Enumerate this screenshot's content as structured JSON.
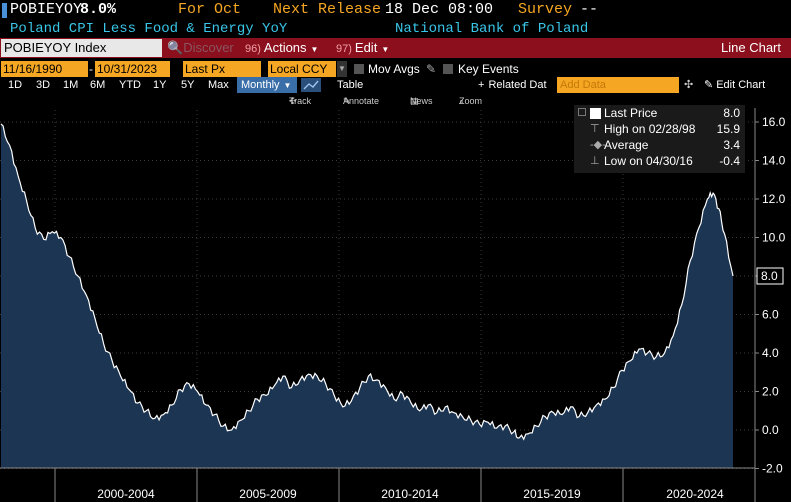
{
  "header": {
    "ticker": "POBIEYOY",
    "value": "8.0%",
    "period": "For Oct",
    "next_release_label": "Next Release",
    "next_release_value": "18 Dec 08:00",
    "survey_label": "Survey",
    "survey_value": "--",
    "description": "Poland CPI Less Food & Energy YoY",
    "source": "National Bank of Poland"
  },
  "toolbar": {
    "security": "POBIEYOY Index",
    "discover": "Discover",
    "actions_num": "96)",
    "actions_label": "Actions",
    "edit_num": "97)",
    "edit_label": "Edit",
    "chart_type": "Line Chart"
  },
  "inputs": {
    "start_date": "11/16/1990",
    "end_date": "10/31/2023",
    "field": "Last Px",
    "currency": "Local CCY",
    "mov_avgs": "Mov Avgs",
    "key_events": "Key Events"
  },
  "ranges": {
    "items": [
      "1D",
      "3D",
      "1M",
      "6M",
      "YTD",
      "1Y",
      "5Y",
      "Max"
    ],
    "frequency": "Monthly",
    "table": "Table",
    "related": "Related Dat",
    "add_data": "Add Data",
    "edit_chart": "Edit Chart"
  },
  "tools": {
    "track": "Track",
    "annotate": "Annotate",
    "news": "News",
    "zoom": "Zoom"
  },
  "legend": {
    "last_label": "Last Price",
    "last_value": "8.0",
    "high_label": "High on 02/28/98",
    "high_value": "15.9",
    "avg_label": "Average",
    "avg_value": "3.4",
    "low_label": "Low on 04/30/16",
    "low_value": "-0.4"
  },
  "colors": {
    "accent_orange": "#f5a623",
    "toolbar_red": "#8b0f1c",
    "header_cyan": "#39c6e8",
    "area_fill": "#1b3553"
  },
  "chart_data": {
    "type": "area",
    "y_ticks": [
      "-2.0",
      "0.0",
      "2.0",
      "4.0",
      "6.0",
      "8.0",
      "10.0",
      "12.0",
      "14.0",
      "16.0"
    ],
    "x_labels": [
      "2000-2004",
      "2005-2009",
      "2010-2014",
      "2015-2019",
      "2020-2024"
    ],
    "ylim": [
      -2.0,
      16.5
    ],
    "last_value_label": "8.0",
    "series": [
      {
        "name": "Last Price",
        "x": [
          1998.1,
          1998.4,
          1998.7,
          1999.0,
          1999.3,
          1999.6,
          1999.9,
          2000.2,
          2000.5,
          2000.8,
          2001.1,
          2001.4,
          2001.7,
          2002.0,
          2002.3,
          2002.6,
          2002.9,
          2003.2,
          2003.5,
          2003.8,
          2004.1,
          2004.4,
          2004.7,
          2005.0,
          2005.3,
          2005.6,
          2005.9,
          2006.2,
          2006.5,
          2006.8,
          2007.1,
          2007.4,
          2007.7,
          2008.0,
          2008.3,
          2008.6,
          2008.9,
          2009.2,
          2009.5,
          2009.8,
          2010.1,
          2010.4,
          2010.7,
          2011.0,
          2011.3,
          2011.6,
          2011.9,
          2012.2,
          2012.5,
          2012.8,
          2013.1,
          2013.4,
          2013.7,
          2014.0,
          2014.3,
          2014.6,
          2014.9,
          2015.2,
          2015.5,
          2015.8,
          2016.1,
          2016.3,
          2016.6,
          2016.9,
          2017.2,
          2017.5,
          2017.8,
          2018.1,
          2018.4,
          2018.7,
          2019.0,
          2019.3,
          2019.6,
          2019.9,
          2020.2,
          2020.5,
          2020.8,
          2021.1,
          2021.4,
          2021.7,
          2022.0,
          2022.3,
          2022.6,
          2022.9,
          2023.1,
          2023.3,
          2023.5,
          2023.8
        ],
        "y": [
          15.9,
          14.8,
          13.2,
          11.9,
          10.5,
          9.9,
          10.3,
          10.0,
          9.0,
          8.0,
          7.0,
          5.8,
          4.5,
          3.6,
          2.8,
          2.1,
          1.4,
          1.0,
          0.6,
          0.8,
          1.3,
          2.1,
          2.4,
          2.0,
          1.3,
          0.8,
          0.2,
          0.0,
          0.5,
          1.0,
          1.6,
          1.8,
          2.3,
          2.8,
          2.2,
          2.6,
          2.9,
          2.8,
          2.4,
          1.8,
          1.2,
          1.5,
          2.2,
          2.8,
          2.6,
          2.2,
          1.6,
          1.9,
          1.4,
          1.0,
          1.3,
          0.9,
          1.2,
          0.9,
          0.7,
          0.5,
          0.3,
          0.4,
          0.1,
          0.2,
          -0.1,
          -0.4,
          -0.2,
          0.2,
          0.7,
          0.9,
          0.8,
          1.2,
          0.7,
          0.9,
          1.3,
          1.6,
          2.2,
          3.1,
          3.6,
          4.2,
          4.0,
          3.8,
          4.0,
          4.9,
          6.5,
          8.8,
          10.5,
          12.0,
          12.3,
          11.5,
          10.2,
          8.0
        ]
      }
    ]
  }
}
